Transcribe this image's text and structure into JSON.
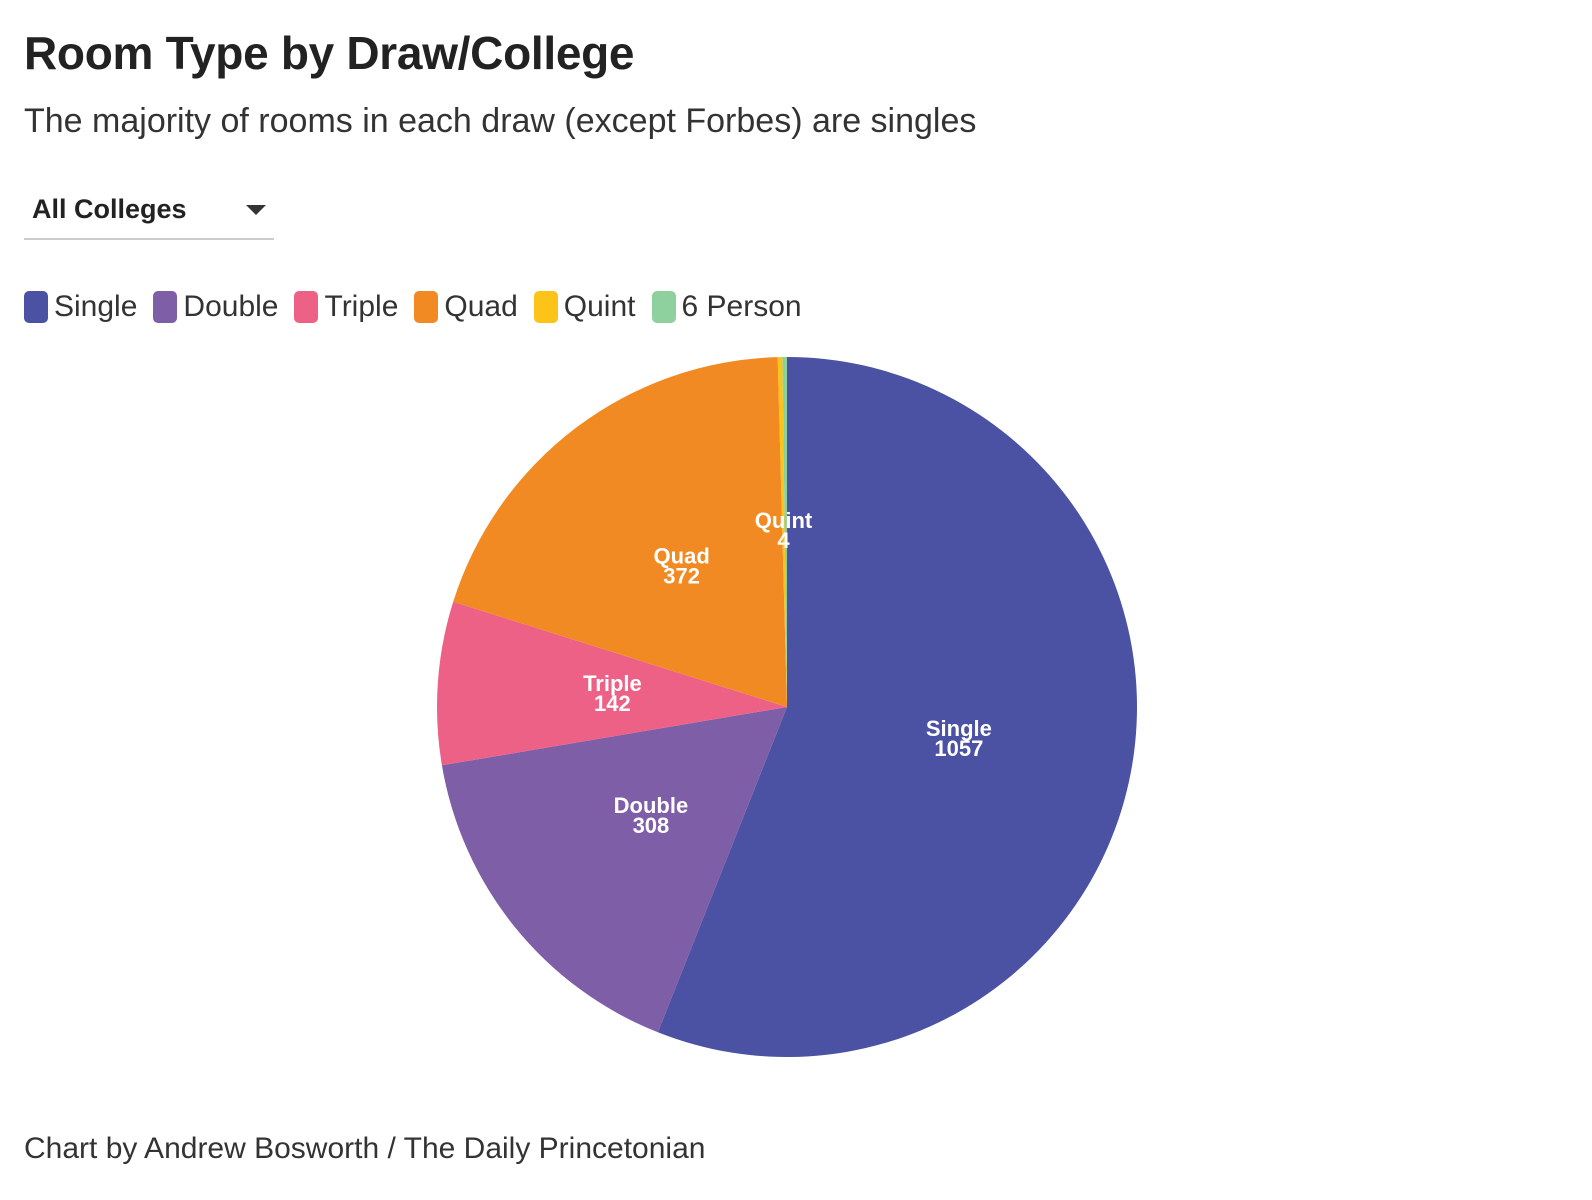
{
  "header": {
    "title": "Room Type by Draw/College",
    "subtitle": "The majority of rooms in each draw (except Forbes) are singles"
  },
  "filter": {
    "selected": "All Colleges",
    "icon": "caret-down-icon"
  },
  "legend": [
    {
      "label": "Single",
      "color": "#4b52a3"
    },
    {
      "label": "Double",
      "color": "#7f5ea8"
    },
    {
      "label": "Triple",
      "color": "#ee6186"
    },
    {
      "label": "Quad",
      "color": "#f28a23"
    },
    {
      "label": "Quint",
      "color": "#fcc419"
    },
    {
      "label": "6 Person",
      "color": "#8fd19e"
    }
  ],
  "chart_data": {
    "type": "pie",
    "title": "Room Type by Draw/College",
    "subtitle": "The majority of rooms in each draw (except Forbes) are singles",
    "categories": [
      "Single",
      "Double",
      "Triple",
      "Quad",
      "Quint",
      "6 Person"
    ],
    "values": [
      1057,
      308,
      142,
      372,
      4,
      4
    ],
    "colors": [
      "#4b52a3",
      "#7f5ea8",
      "#ee6186",
      "#f28a23",
      "#fcc419",
      "#8fd19e"
    ],
    "data_labels": [
      {
        "name": "Single",
        "value": "1057"
      },
      {
        "name": "Double",
        "value": "308"
      },
      {
        "name": "Triple",
        "value": "142"
      },
      {
        "name": "Quad",
        "value": "372"
      },
      {
        "name": "Quint",
        "value": "4"
      }
    ],
    "legend_position": "top-left"
  },
  "footer": {
    "credit": "Chart by Andrew Bosworth / The Daily Princetonian"
  }
}
